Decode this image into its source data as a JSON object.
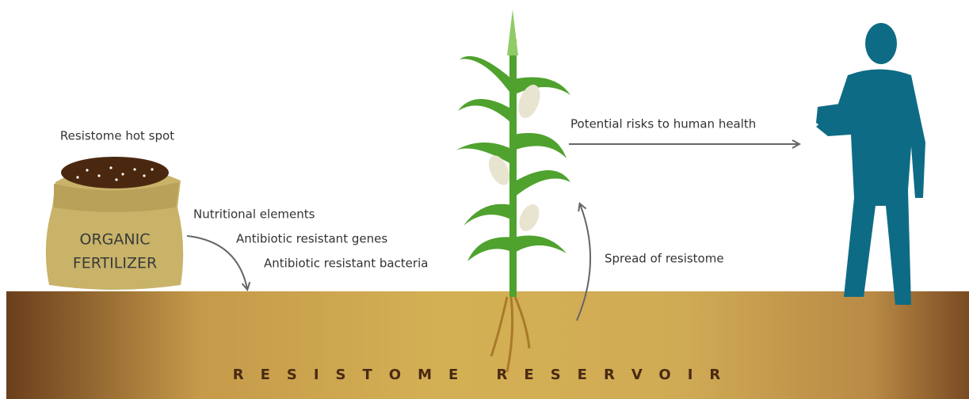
{
  "labels": {
    "hot_spot": "Resistome hot spot",
    "nutritional": "Nutritional elements",
    "genes": "Antibiotic resistant genes",
    "bacteria": "Antibiotic resistant bacteria",
    "spread": "Spread of resistome",
    "risks": "Potential risks to human health"
  },
  "bag": {
    "lines": [
      "ORGANIC",
      "FERTILIZER"
    ]
  },
  "ground": {
    "label": "RESISTOME RESERVOIR"
  }
}
